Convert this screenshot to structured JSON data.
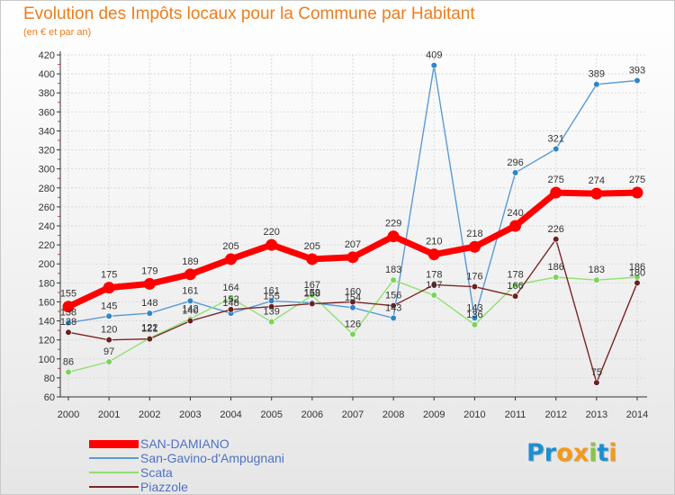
{
  "title": "Evolution des Impôts locaux pour la Commune par Habitant",
  "subtitle": "(en € et par an)",
  "logo": {
    "text": "Proxiti",
    "colors": [
      "#1d8fd1",
      "#1d8fd1",
      "#f39a1b",
      "#f39a1b",
      "#8bc34a",
      "#1d8fd1",
      "#f39a1b"
    ]
  },
  "chart_data": {
    "type": "line",
    "title": "Evolution des Impôts locaux pour la Commune par Habitant",
    "subtitle": "(en € et par an)",
    "xlabel": "",
    "ylabel": "",
    "categories": [
      "2000",
      "2001",
      "2002",
      "2003",
      "2004",
      "2005",
      "2006",
      "2007",
      "2008",
      "2009",
      "2010",
      "2011",
      "2012",
      "2013",
      "2014"
    ],
    "yticks": [
      60,
      80,
      100,
      120,
      140,
      160,
      180,
      200,
      220,
      240,
      260,
      280,
      300,
      320,
      340,
      360,
      380,
      400,
      420
    ],
    "ylim": [
      60,
      420
    ],
    "grid": true,
    "legend_position": "bottom-left",
    "series": [
      {
        "name": "SAN-DAMIANO",
        "color": "#ff0000",
        "emphasis": true,
        "values": [
          155,
          175,
          179,
          189,
          205,
          220,
          205,
          207,
          229,
          210,
          218,
          240,
          275,
          274,
          275
        ],
        "labels": [
          "155",
          "175",
          "179",
          "189",
          "205",
          "220",
          "205",
          "207",
          "229",
          "210",
          "218",
          "240",
          "275",
          "274",
          "275"
        ]
      },
      {
        "name": "San-Gavino-d'Ampugnani",
        "color": "#5b9bd5",
        "point_color": "#2e86c8",
        "emphasis": false,
        "values": [
          138,
          145,
          148,
          161,
          148,
          161,
          159,
          154,
          143,
          409,
          143,
          296,
          321,
          389,
          393
        ],
        "labels": [
          "138",
          "145",
          "148",
          "161",
          "148",
          "161",
          "159",
          "154",
          "143",
          "409",
          "143",
          "296",
          "321",
          "389",
          "393"
        ]
      },
      {
        "name": "Scata",
        "color": "#90e070",
        "point_color": "#7ad35a",
        "emphasis": false,
        "values": [
          86,
          97,
          122,
          142,
          164,
          139,
          167,
          126,
          183,
          167,
          136,
          178,
          186,
          183,
          186
        ],
        "labels": [
          "86",
          "97",
          "122",
          "142",
          "164",
          "139",
          "167",
          "126",
          "183",
          "167",
          "136",
          "178",
          "186",
          "183",
          "186"
        ]
      },
      {
        "name": "Piazzole",
        "color": "#7a2626",
        "point_color": "#6b1f1f",
        "emphasis": false,
        "values": [
          128,
          120,
          121,
          140,
          152,
          155,
          158,
          160,
          156,
          178,
          176,
          166,
          226,
          75,
          180
        ],
        "labels": [
          "128",
          "120",
          "121",
          "140",
          "152",
          "155",
          "158",
          "160",
          "156",
          "178",
          "176",
          "166",
          "226",
          "75",
          "180"
        ]
      }
    ]
  }
}
